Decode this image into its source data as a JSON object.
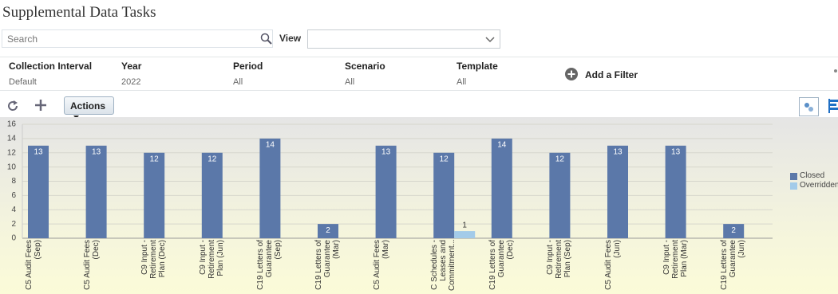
{
  "header": {
    "title": "Supplemental Data Tasks"
  },
  "search": {
    "placeholder": "Search"
  },
  "view": {
    "label": "View"
  },
  "filters": [
    {
      "label": "Collection Interval",
      "value": "Default"
    },
    {
      "label": "Year",
      "value": "2022"
    },
    {
      "label": "Period",
      "value": "All"
    },
    {
      "label": "Scenario",
      "value": "All"
    },
    {
      "label": "Template",
      "value": "All"
    }
  ],
  "add_filter": "Add a Filter",
  "toolbar": {
    "actions": "Actions"
  },
  "chart_data": {
    "type": "bar",
    "categories": [
      "C5 Audit Fees (Sep)",
      "C5 Audit Fees (Dec)",
      "C9 Input - Retirement Plan (Dec)",
      "C9 Input - Retirement Plan (Jun)",
      "C19 Letters of Guarantee (Sep)",
      "C19 Letters of Guarantee (Mar)",
      "C5 Audit Fees (Mar)",
      "C Schedules - Leases and Commitment...",
      "C19 Letters of Guarantee (Dec)",
      "C9 Input - Retirement Plan (Sep)",
      "C5 Audit Fees (Jun)",
      "C9 Input - Retirement Plan (Mar)",
      "C19 Letters of Guarantee (Jun)"
    ],
    "series": [
      {
        "name": "Closed",
        "color": "#5b78a9",
        "values": [
          13,
          13,
          12,
          12,
          14,
          2,
          13,
          12,
          14,
          12,
          13,
          13,
          2
        ]
      },
      {
        "name": "Overridden",
        "color": "#a3cbe9",
        "values": [
          null,
          null,
          null,
          null,
          null,
          null,
          null,
          1,
          null,
          null,
          null,
          null,
          null
        ]
      }
    ],
    "ylim": [
      0,
      16
    ],
    "yticks": [
      0,
      2,
      4,
      6,
      8,
      10,
      12,
      14,
      16
    ],
    "grid": true
  }
}
